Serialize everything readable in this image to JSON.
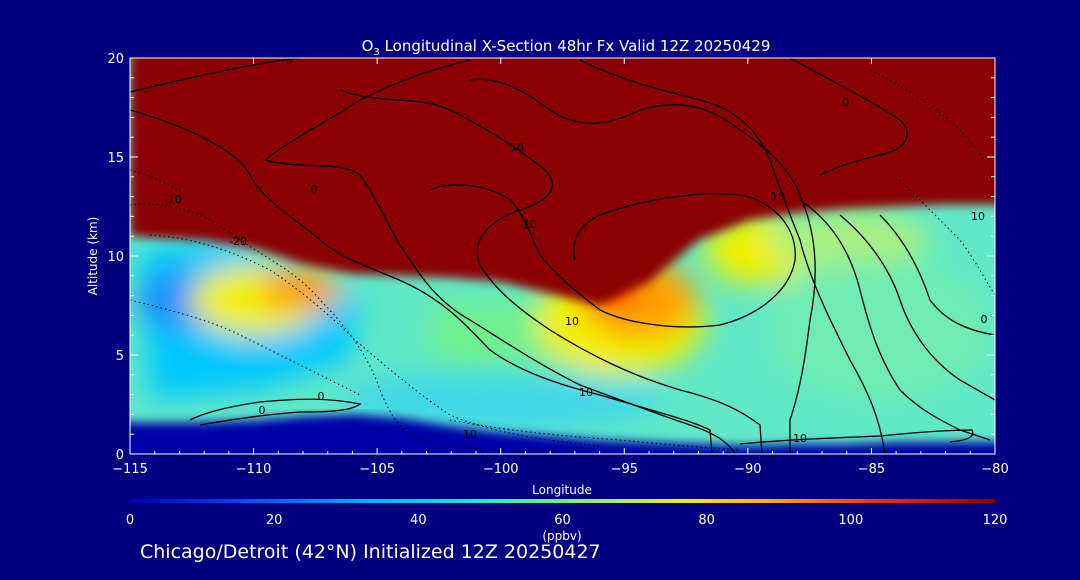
{
  "chart_data": {
    "type": "heatmap",
    "title_main": "O",
    "title_sub": "3",
    "title_rest": " Longitudinal X-Section 48hr  Fx Valid 12Z 20250429",
    "xlabel": "Longitude",
    "ylabel": "Altitude (km)",
    "xlim": [
      -115,
      -80
    ],
    "ylim": [
      0,
      20
    ],
    "xticks": [
      -115,
      -110,
      -105,
      -100,
      -95,
      -90,
      -85,
      -80
    ],
    "xtick_labels": [
      "−115",
      "−110",
      "−105",
      "−100",
      "−95",
      "−90",
      "−85",
      "−80"
    ],
    "yticks": [
      0,
      5,
      10,
      15,
      20
    ],
    "ytick_labels": [
      "0",
      "5",
      "10",
      "15",
      "20"
    ],
    "colorbar": {
      "range": [
        0,
        120
      ],
      "ticks": [
        0,
        20,
        40,
        60,
        80,
        100,
        120
      ],
      "tick_labels": [
        "0",
        "20",
        "40",
        "60",
        "80",
        "100",
        "120"
      ],
      "unit_label": "(ppbv)",
      "colors": [
        "#0000a8",
        "#0050ff",
        "#00c8ff",
        "#40e8c0",
        "#80f080",
        "#f0f000",
        "#ffb000",
        "#ff3000",
        "#8b0000"
      ]
    },
    "field": {
      "description_units": "ozone mixing ratio, ppbv",
      "tropopause_lon": [
        -115,
        -112,
        -110,
        -108,
        -106,
        -104,
        -102,
        -100,
        -98,
        -96,
        -94,
        -92,
        -90,
        -88,
        -86,
        -84,
        -82,
        -80
      ],
      "tropopause_alt_km": [
        11.0,
        10.8,
        10.4,
        9.6,
        9.1,
        9.0,
        8.9,
        8.7,
        8.1,
        7.5,
        8.7,
        10.8,
        11.8,
        12.2,
        12.4,
        12.5,
        12.6,
        12.6
      ],
      "boundary_alt_km": [
        1.6,
        1.6,
        1.7,
        1.9,
        2.0,
        1.8,
        1.4,
        1.1,
        0.9,
        0.7,
        0.6,
        0.5,
        0.4,
        0.5,
        0.5,
        0.6,
        0.6,
        0.6
      ]
    },
    "contour_labels": [
      "0",
      "10",
      "-10",
      "-20",
      "0",
      "10",
      "10",
      "-10",
      "0",
      "10",
      "0",
      "10",
      "10",
      "0",
      "0",
      "10"
    ]
  },
  "caption": "Chicago/Detroit (42°N) Initialized 12Z 20250427",
  "colors": {
    "background": "#000080",
    "text": "#ffffff",
    "contour": "#000000"
  }
}
